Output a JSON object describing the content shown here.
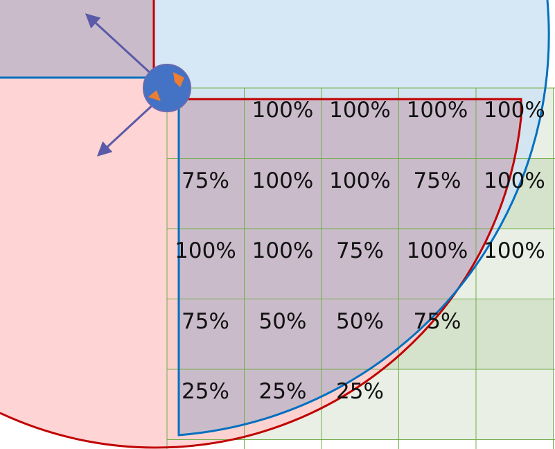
{
  "diagram": {
    "colors": {
      "red_region": "#ffcccc",
      "red_outline": "#c00000",
      "blue_region": "#cfe3f3",
      "blue_outline": "#0070c0",
      "grid_fill_dark": "#d5e2cc",
      "grid_fill_light": "#e9efe5",
      "grid_line": "#70ad47",
      "overlap_purple": "#c9b8c7",
      "arrow": "#5a5aa8",
      "node_fill": "#4472c4",
      "node_outline": "#6a6ab0",
      "corner_marker": "#ed7d31"
    },
    "grid": {
      "rows": [
        [
          "",
          "100%",
          "100%",
          "100%",
          "100%"
        ],
        [
          "75%",
          "100%",
          "100%",
          "75%",
          "100%"
        ],
        [
          "100%",
          "100%",
          "75%",
          "100%",
          "100%"
        ],
        [
          "75%",
          "50%",
          "50%",
          "75%",
          ""
        ],
        [
          "25%",
          "25%",
          "25%",
          "",
          ""
        ]
      ]
    }
  }
}
